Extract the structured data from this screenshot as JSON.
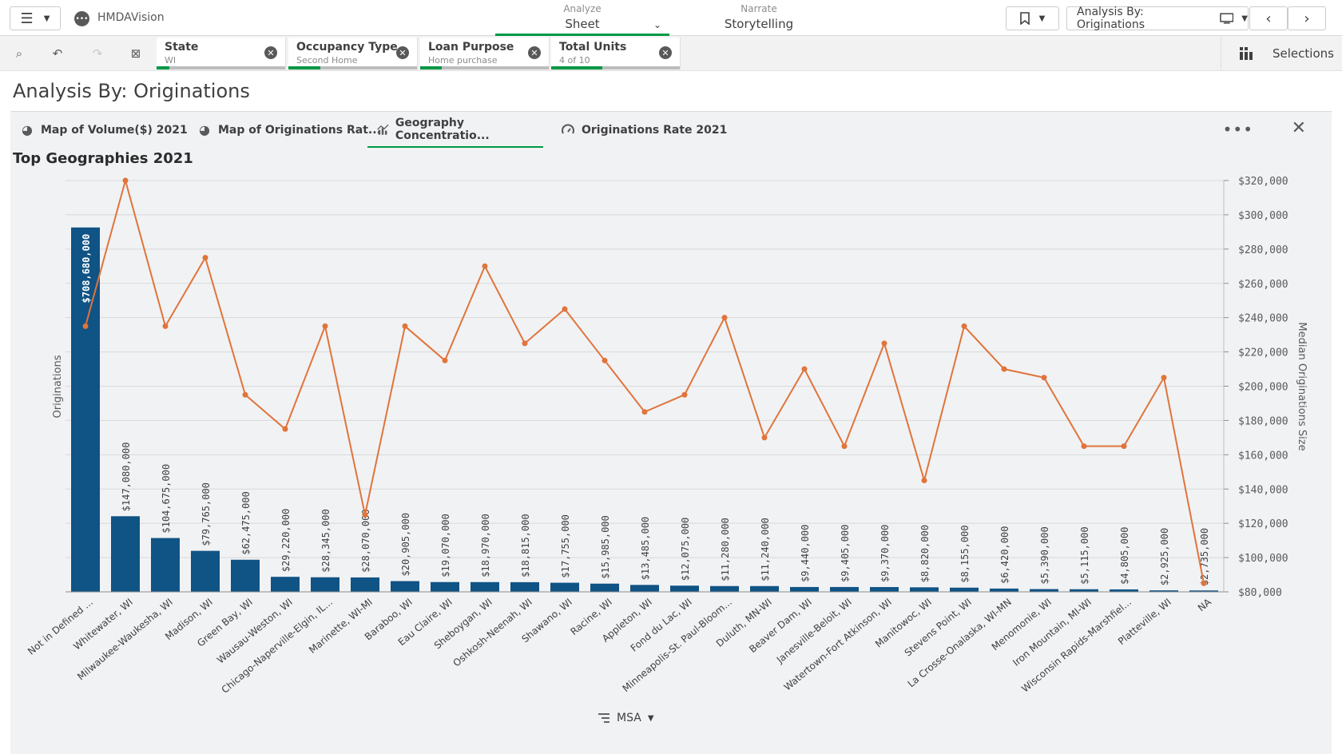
{
  "app": {
    "name": "HMDAVision",
    "logo_icon": "qlik-dots-icon"
  },
  "modes": {
    "analyze": {
      "label": "Analyze",
      "value": "Sheet"
    },
    "narrate": {
      "label": "Narrate",
      "value": "Storytelling"
    }
  },
  "toolbar": {
    "sheet_selector": "Analysis By: Originations"
  },
  "selections": {
    "chips": [
      {
        "name": "State",
        "value": "WI",
        "fill": 0.1
      },
      {
        "name": "Occupancy Type",
        "value": "Second Home",
        "fill": 0.25
      },
      {
        "name": "Loan Purpose",
        "value": "Home purchase",
        "fill": 0.17
      },
      {
        "name": "Total Units",
        "value": "4 of 10",
        "fill": 0.4
      }
    ],
    "button_label": "Selections"
  },
  "sheet": {
    "title": "Analysis By: Originations"
  },
  "tabs": [
    {
      "label": "Map of Volume($) 2021",
      "icon": "globe-icon"
    },
    {
      "label": "Map of Originations Rat...",
      "icon": "globe-icon"
    },
    {
      "label": "Geography Concentratio...",
      "icon": "combo-chart-icon",
      "active": true
    },
    {
      "label": "Originations Rate 2021",
      "icon": "gauge-icon"
    }
  ],
  "chart_data": {
    "type": "bar",
    "title": "Top Geographies 2021",
    "ylabel": "Originations",
    "y2label": "Median Originations Size",
    "dimension_label": "MSA",
    "categories": [
      "Not in Defined ...",
      "Whitewater, WI",
      "Milwaukee-Waukesha, WI",
      "Madison, WI",
      "Green Bay, WI",
      "Wausau-Weston, WI",
      "Chicago-Naperville-Elgin, IL...",
      "Marinette, WI-MI",
      "Baraboo, WI",
      "Eau Claire, WI",
      "Sheboygan, WI",
      "Oshkosh-Neenah, WI",
      "Shawano, WI",
      "Racine, WI",
      "Appleton, WI",
      "Fond du Lac, WI",
      "Minneapolis-St. Paul-Bloom...",
      "Duluth, MN-WI",
      "Beaver Dam, WI",
      "Janesville-Beloit, WI",
      "Watertown-Fort Atkinson, WI",
      "Manitowoc, WI",
      "Stevens Point, WI",
      "La Crosse-Onalaska, WI-MN",
      "Menomonie, WI",
      "Iron Mountain, MI-WI",
      "Wisconsin Rapids-Marshfiel...",
      "Platteville, WI",
      "NA"
    ],
    "series": [
      {
        "name": "Originations",
        "kind": "bar",
        "color": "#105385",
        "values": [
          708680000,
          147080000,
          104675000,
          79765000,
          62475000,
          29220000,
          28345000,
          28070000,
          20905000,
          19070000,
          18970000,
          18815000,
          17755000,
          15985000,
          13485000,
          12075000,
          11280000,
          11240000,
          9440000,
          9405000,
          9370000,
          8820000,
          8155000,
          6420000,
          5390000,
          5115000,
          4805000,
          2925000,
          2735000
        ],
        "value_labels": [
          "$708,680,000",
          "$147,080,000",
          "$104,675,000",
          "$79,765,000",
          "$62,475,000",
          "$29,220,000",
          "$28,345,000",
          "$28,070,000",
          "$20,905,000",
          "$19,070,000",
          "$18,970,000",
          "$18,815,000",
          "$17,755,000",
          "$15,985,000",
          "$13,485,000",
          "$12,075,000",
          "$11,280,000",
          "$11,240,000",
          "$9,440,000",
          "$9,405,000",
          "$9,370,000",
          "$8,820,000",
          "$8,155,000",
          "$6,420,000",
          "$5,390,000",
          "$5,115,000",
          "$4,805,000",
          "$2,925,000",
          "$2,735,000"
        ]
      },
      {
        "name": "Median Originations Size",
        "kind": "line",
        "axis": "right",
        "color": "#e0743b",
        "values": [
          235000,
          320000,
          235000,
          275000,
          195000,
          175000,
          235000,
          125000,
          235000,
          215000,
          270000,
          225000,
          245000,
          215000,
          185000,
          195000,
          240000,
          170000,
          210000,
          165000,
          225000,
          145000,
          235000,
          210000,
          205000,
          165000,
          165000,
          205000,
          85000
        ]
      }
    ],
    "y_left": {
      "min": 0,
      "max": 800000000
    },
    "y_right": {
      "min": 80000,
      "max": 320000,
      "ticks": [
        "$80,000",
        "$100,000",
        "$120,000",
        "$140,000",
        "$160,000",
        "$180,000",
        "$200,000",
        "$220,000",
        "$240,000",
        "$260,000",
        "$280,000",
        "$300,000",
        "$320,000"
      ],
      "tick_values": [
        80000,
        100000,
        120000,
        140000,
        160000,
        180000,
        200000,
        220000,
        240000,
        260000,
        280000,
        300000,
        320000
      ]
    },
    "grid": true
  }
}
